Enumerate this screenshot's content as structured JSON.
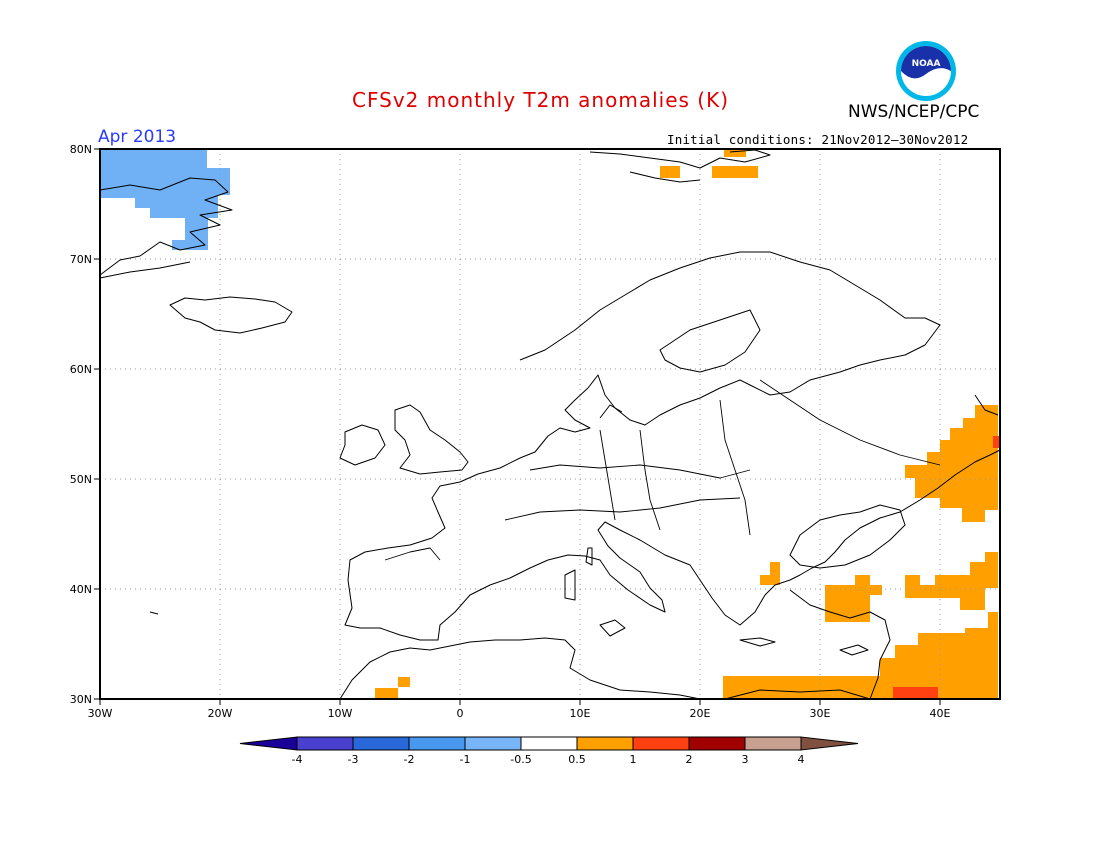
{
  "header": {
    "title": "CFSv2 monthly T2m anomalies (K)",
    "agency": "NWS/NCEP/CPC",
    "period": "Apr 2013",
    "initial_conditions": "Initial conditions: 21Nov2012–30Nov2012",
    "logo_text": "NOAA",
    "logo_icon": "noaa-logo-icon"
  },
  "colors": {
    "title": "#e00000",
    "period": "#2a3aff",
    "anom_m1": "#70b0f5",
    "anom_p05": "#ffa000",
    "anom_p1": "#ff4010",
    "grid": "#999999"
  },
  "map": {
    "lat_ticks": [
      "80N",
      "70N",
      "60N",
      "50N",
      "40N",
      "30N"
    ],
    "lon_ticks": [
      "30W",
      "20W",
      "10W",
      "0",
      "10E",
      "20E",
      "30E",
      "40E"
    ]
  },
  "legend": {
    "labels": [
      "-4",
      "-3",
      "-2",
      "-1",
      "-0.5",
      "0.5",
      "1",
      "2",
      "3",
      "4"
    ],
    "colors": [
      "#1a0098",
      "#4a40d0",
      "#2868d8",
      "#4898f0",
      "#78b4f8",
      "#ffffff",
      "#ffa000",
      "#ff4010",
      "#a00000",
      "#c8a090",
      "#805040"
    ]
  }
}
